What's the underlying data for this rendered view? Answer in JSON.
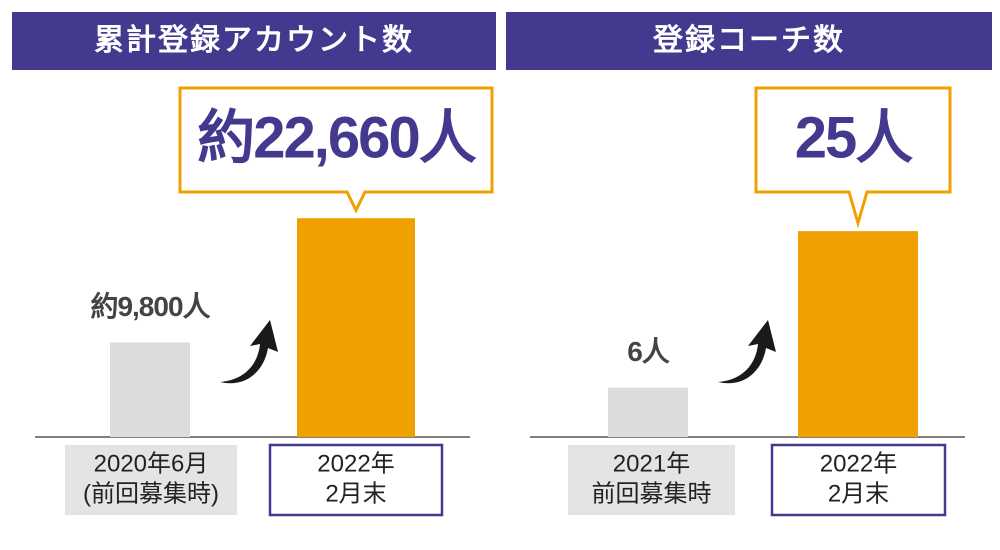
{
  "chart_data": [
    {
      "type": "bar",
      "title": "累計登録アカウント数",
      "categories": [
        [
          "2020年6月",
          "(前回募集時)"
        ],
        [
          "2022年",
          "2月末"
        ]
      ],
      "values": [
        9800,
        22660
      ],
      "value_labels": [
        "約9,800人",
        "約22,660人"
      ],
      "colors": [
        "#dcdcdc",
        "#f0a000"
      ],
      "ylim": [
        0,
        29000
      ]
    },
    {
      "type": "bar",
      "title": "登録コーチ数",
      "categories": [
        [
          "2021年",
          "前回募集時"
        ],
        [
          "2022年",
          "2月末"
        ]
      ],
      "values": [
        6,
        25
      ],
      "value_labels": [
        "6人",
        "25人"
      ],
      "colors": [
        "#dcdcdc",
        "#f0a000"
      ],
      "ylim": [
        0,
        34
      ]
    }
  ]
}
